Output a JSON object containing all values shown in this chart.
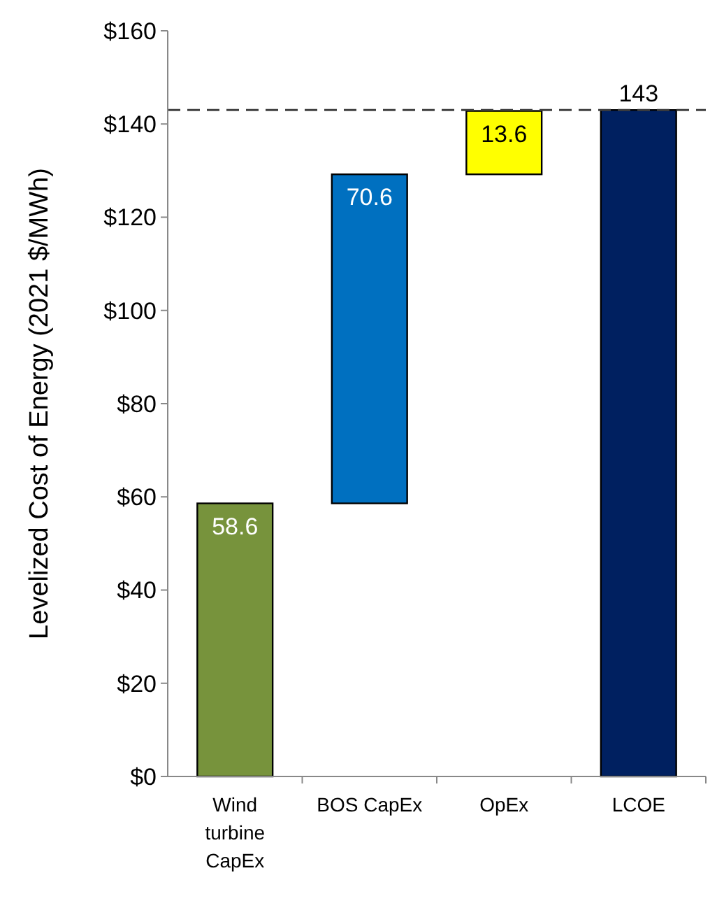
{
  "chart_data": {
    "type": "bar",
    "ylabel": "Levelized Cost of Energy (2021 $/MWh)",
    "categories": [
      "Wind turbine CapEx",
      "BOS CapEx",
      "OpEx",
      "LCOE"
    ],
    "values": [
      58.6,
      70.6,
      13.6,
      143
    ],
    "base": [
      0,
      58.6,
      129.2,
      0
    ],
    "colors": [
      "#77933c",
      "#0070c0",
      "#ffff00",
      "#002060"
    ],
    "data_labels": true,
    "ylim": [
      0,
      160
    ],
    "yticks": [
      {
        "value": 0,
        "label": "$0"
      },
      {
        "value": 20,
        "label": "$20"
      },
      {
        "value": 40,
        "label": "$40"
      },
      {
        "value": 60,
        "label": "$60"
      },
      {
        "value": 80,
        "label": "$80"
      },
      {
        "value": 100,
        "label": "$100"
      },
      {
        "value": 120,
        "label": "$120"
      },
      {
        "value": 140,
        "label": "$140"
      },
      {
        "value": 160,
        "label": "$160"
      }
    ],
    "ref_lines": [
      {
        "axis": "y",
        "value": 143,
        "color": "#404040",
        "line_style": "dashed"
      }
    ],
    "grid": false
  }
}
